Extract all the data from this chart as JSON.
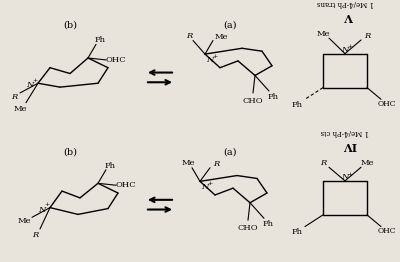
{
  "background_color": "#e8e4dc",
  "figsize": [
    4.0,
    2.62
  ],
  "dpi": 100,
  "top_label_b": "(b)",
  "top_label_a": "(a)",
  "bot_label_b": "(b)",
  "bot_label_a": "(a)",
  "ring_label_top": "V",
  "ring_name_top": "1 Me/4-Ph trans",
  "ring_label_bot": "IV",
  "ring_name_bot": "1 Me/4-Ph cis"
}
